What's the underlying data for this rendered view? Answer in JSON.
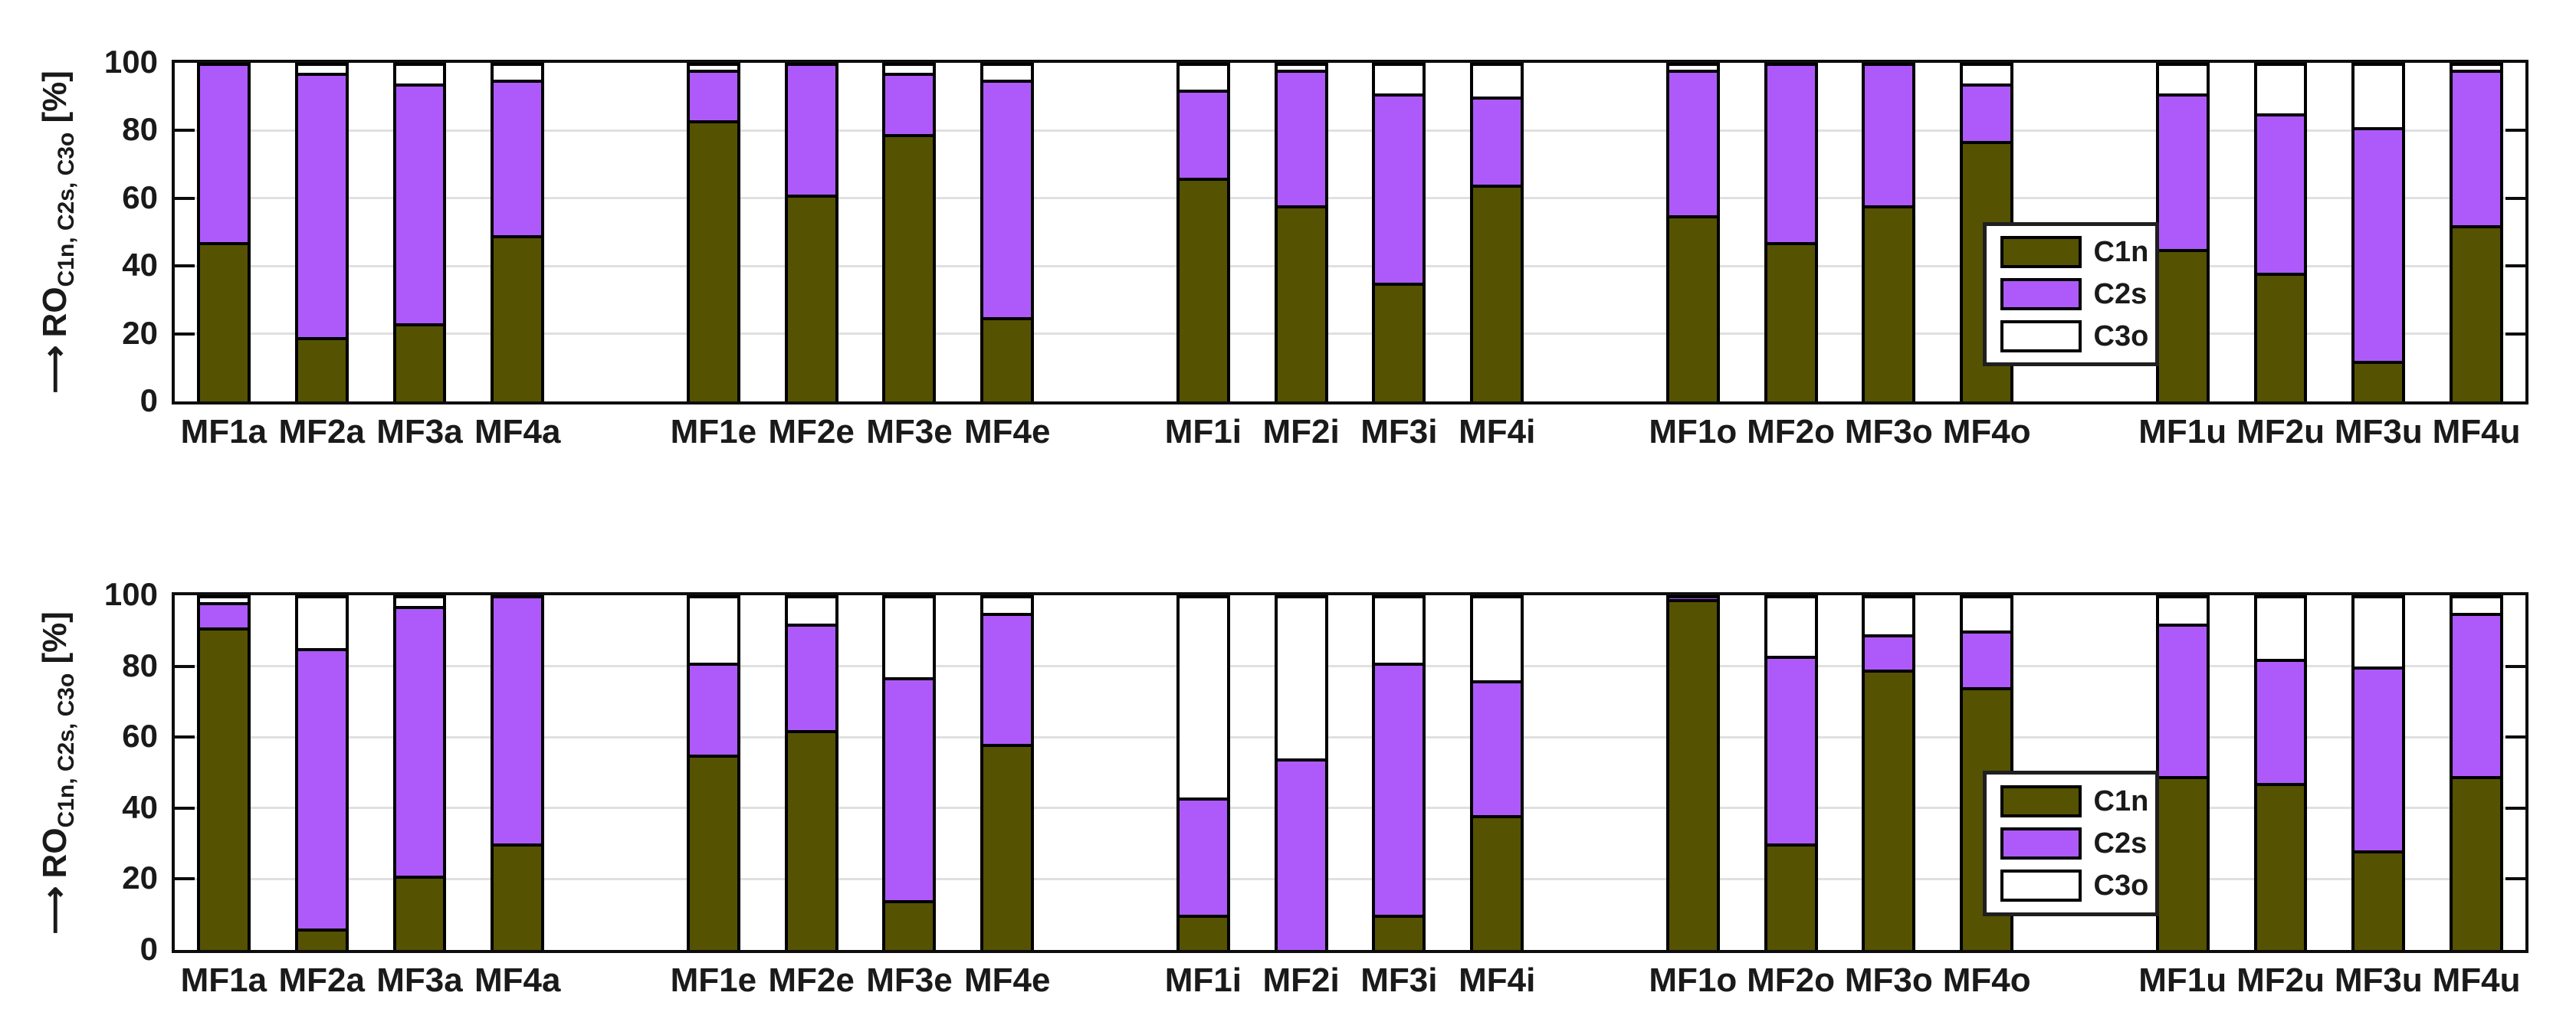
{
  "colors": {
    "C1n": "#555202",
    "C2s": "#ae5afa",
    "C3o": "#ffffff",
    "grid": "#e0e0e0",
    "axis": "#0d0d0d",
    "text": "#1a1a1a"
  },
  "axis": {
    "arrow": "⟶",
    "ro": "RO",
    "sub": "C1n, C2s, C3o",
    "unit": "[%]",
    "ticks": [
      0,
      20,
      40,
      60,
      80,
      100
    ],
    "ylim": [
      0,
      100
    ]
  },
  "legend": {
    "items": [
      "C1n",
      "C2s",
      "C3o"
    ]
  },
  "chart_data": [
    {
      "type": "bar",
      "stacked": true,
      "panel": "top",
      "title": "",
      "xlabel": "",
      "ylabel": "RO_C1n, C2s, C3o [%]",
      "ylim": [
        0,
        100
      ],
      "grid": "horizontal at 20,40,60,80",
      "legend_position": "right-lower",
      "groups": [
        "a",
        "e",
        "i",
        "o",
        "u"
      ],
      "categories": [
        "MF1a",
        "MF2a",
        "MF3a",
        "MF4a",
        "MF1e",
        "MF2e",
        "MF3e",
        "MF4e",
        "MF1i",
        "MF2i",
        "MF3i",
        "MF4i",
        "MF1o",
        "MF2o",
        "MF3o",
        "MF4o",
        "MF1u",
        "MF2u",
        "MF3u",
        "MF4u"
      ],
      "series": [
        {
          "name": "C1n",
          "color": "#555202",
          "values": [
            47,
            19,
            23,
            49,
            83,
            61,
            79,
            25,
            66,
            58,
            35,
            64,
            55,
            47,
            58,
            77,
            45,
            38,
            12,
            52
          ]
        },
        {
          "name": "C2s",
          "color": "#ae5afa",
          "values": [
            53,
            78,
            71,
            46,
            15,
            39,
            18,
            70,
            26,
            40,
            56,
            26,
            43,
            53,
            42,
            17,
            46,
            47,
            69,
            46
          ]
        },
        {
          "name": "C3o",
          "color": "#ffffff",
          "values": [
            0,
            3,
            6,
            5,
            2,
            0,
            3,
            5,
            8,
            2,
            9,
            10,
            2,
            0,
            0,
            6,
            9,
            15,
            19,
            2
          ]
        }
      ]
    },
    {
      "type": "bar",
      "stacked": true,
      "panel": "bottom",
      "title": "",
      "xlabel": "",
      "ylabel": "RO_C1n, C2s, C3o [%]",
      "ylim": [
        0,
        100
      ],
      "grid": "horizontal at 20,40,60,80",
      "legend_position": "right-middle",
      "groups": [
        "a",
        "e",
        "i",
        "o",
        "u"
      ],
      "categories": [
        "MF1a",
        "MF2a",
        "MF3a",
        "MF4a",
        "MF1e",
        "MF2e",
        "MF3e",
        "MF4e",
        "MF1i",
        "MF2i",
        "MF3i",
        "MF4i",
        "MF1o",
        "MF2o",
        "MF3o",
        "MF4o",
        "MF1u",
        "MF2u",
        "MF3u",
        "MF4u"
      ],
      "series": [
        {
          "name": "C1n",
          "color": "#555202",
          "values": [
            91,
            6,
            21,
            30,
            55,
            62,
            14,
            58,
            10,
            0,
            10,
            38,
            99,
            30,
            79,
            74,
            49,
            47,
            28,
            49
          ]
        },
        {
          "name": "C2s",
          "color": "#ae5afa",
          "values": [
            7,
            79,
            76,
            70,
            26,
            30,
            63,
            37,
            33,
            54,
            71,
            38,
            1,
            53,
            10,
            16,
            43,
            35,
            52,
            46
          ]
        },
        {
          "name": "C3o",
          "color": "#ffffff",
          "values": [
            2,
            15,
            3,
            0,
            19,
            8,
            23,
            5,
            57,
            46,
            19,
            24,
            0,
            17,
            11,
            10,
            8,
            18,
            20,
            5
          ]
        }
      ]
    }
  ]
}
